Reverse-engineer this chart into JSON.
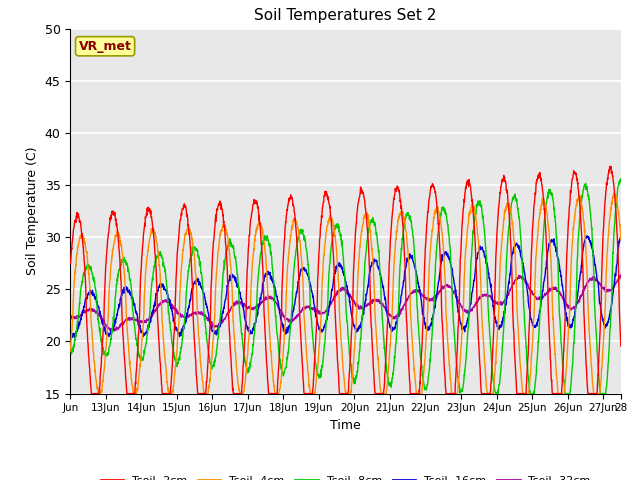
{
  "title": "Soil Temperatures Set 2",
  "xlabel": "Time",
  "ylabel": "Soil Temperature (C)",
  "ylim": [
    15,
    50
  ],
  "background_color": "#ffffff",
  "plot_bg_color": "#e8e8e8",
  "grid_color": "#ffffff",
  "annotation_text": "VR_met",
  "annotation_bg": "#ffff99",
  "annotation_border": "#999900",
  "annotation_text_color": "#8b0000",
  "series_colors": {
    "Tsoil -2cm": "#ff0000",
    "Tsoil -4cm": "#ff8c00",
    "Tsoil -8cm": "#00cc00",
    "Tsoil -16cm": "#0000dd",
    "Tsoil -32cm": "#aa00aa"
  },
  "xtick_labels": [
    "Jun",
    "13Jun",
    "14Jun",
    "15Jun",
    "16Jun",
    "17Jun",
    "18Jun",
    "19Jun",
    "20Jun",
    "21Jun",
    "22Jun",
    "23Jun",
    "24Jun",
    "25Jun",
    "26Jun",
    "27Jun",
    "28"
  ],
  "xtick_positions": [
    0,
    1,
    2,
    3,
    4,
    5,
    6,
    7,
    8,
    9,
    10,
    11,
    12,
    13,
    14,
    15,
    15.5
  ],
  "ytick_values": [
    15,
    20,
    25,
    30,
    35,
    40,
    45,
    50
  ]
}
